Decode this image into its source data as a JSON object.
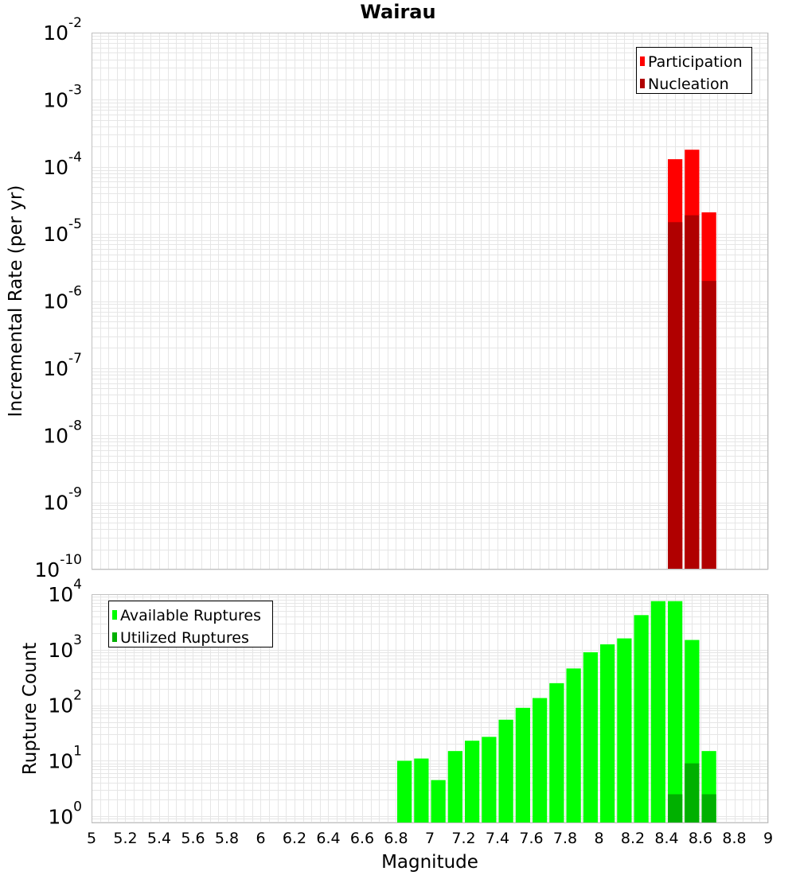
{
  "colors": {
    "participation": "#ff0000",
    "nucleation": "#b00000",
    "available": "#00ff00",
    "utilized": "#00b000",
    "grid": "#e6e6e6",
    "axis_border": "#c0c0c0"
  },
  "chart_data": [
    {
      "type": "bar",
      "title": "Wairau",
      "xlabel": "",
      "ylabel": "Incremental Rate (per yr)",
      "yscale": "log",
      "ylim": [
        1e-10,
        0.01
      ],
      "xlim": [
        5,
        9
      ],
      "y_tick_exponents": [
        "-2",
        "-3",
        "-4",
        "-5",
        "-6",
        "-7",
        "-8",
        "-9",
        "-10"
      ],
      "legend": {
        "position": "top-right",
        "entries": [
          "Participation",
          "Nucleation"
        ]
      },
      "x": [
        8.45,
        8.55,
        8.65
      ],
      "series": [
        {
          "name": "Participation",
          "values": [
            0.00013,
            0.00018,
            2.1e-05
          ]
        },
        {
          "name": "Nucleation",
          "values": [
            1.5e-05,
            1.9e-05,
            2e-06
          ]
        }
      ]
    },
    {
      "type": "bar",
      "xlabel": "Magnitude",
      "ylabel": "Rupture Count",
      "yscale": "log",
      "ylim": [
        0.75,
        10000
      ],
      "xlim": [
        5,
        9
      ],
      "x_ticks": [
        "5",
        "5.2",
        "5.4",
        "5.6",
        "5.8",
        "6",
        "6.2",
        "6.4",
        "6.6",
        "6.8",
        "7",
        "7.2",
        "7.4",
        "7.6",
        "7.8",
        "8",
        "8.2",
        "8.4",
        "8.6",
        "8.8",
        "9"
      ],
      "y_tick_exponents": [
        "4",
        "3",
        "2",
        "1",
        "0"
      ],
      "legend": {
        "position": "top-left",
        "entries": [
          "Available Ruptures",
          "Utilized Ruptures"
        ]
      },
      "x": [
        6.85,
        6.95,
        7.05,
        7.15,
        7.25,
        7.35,
        7.45,
        7.55,
        7.65,
        7.75,
        7.85,
        7.95,
        8.05,
        8.15,
        8.25,
        8.35,
        8.45,
        8.55,
        8.65
      ],
      "series": [
        {
          "name": "Available Ruptures",
          "values": [
            10,
            11,
            4.5,
            15,
            23,
            27,
            55,
            90,
            135,
            250,
            460,
            900,
            1250,
            1600,
            4200,
            7500,
            7500,
            1500,
            15
          ]
        },
        {
          "name": "Utilized Ruptures",
          "values": [
            0,
            0,
            0,
            0,
            0,
            0,
            0,
            0,
            0,
            0,
            0,
            0,
            0,
            0,
            0,
            0,
            2.5,
            9,
            2.5
          ]
        }
      ]
    }
  ]
}
